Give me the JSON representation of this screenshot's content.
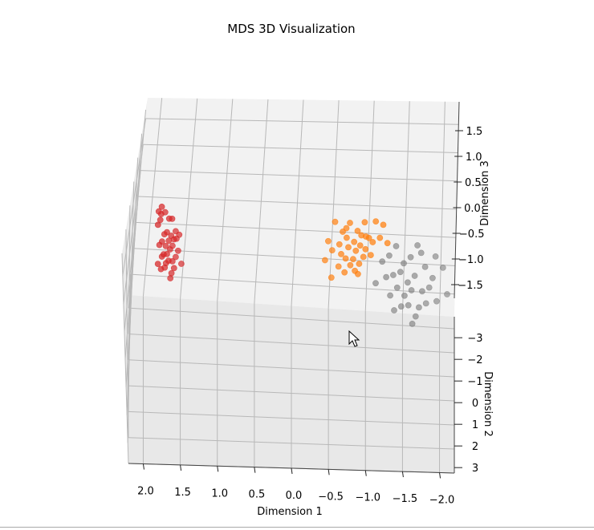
{
  "chart_data": {
    "type": "scatter",
    "subtype": "3d",
    "title": "MDS 3D Visualization",
    "xlabel": "Dimension 1",
    "ylabel": "Dimension 2",
    "zlabel": "Dimension 3",
    "xlim": [
      2.2,
      -2.2
    ],
    "ylim": [
      -3.5,
      3.0
    ],
    "zlim": [
      -1.9,
      1.9
    ],
    "xticks": [
      2.0,
      1.5,
      1.0,
      0.5,
      0.0,
      -0.5,
      -1.0,
      -1.5,
      -2.0
    ],
    "xtick_labels": [
      "2.0",
      "1.5",
      "1.0",
      "0.5",
      "0.0",
      "−0.5",
      "−1.0",
      "−1.5",
      "−2.0"
    ],
    "yticks": [
      -3,
      -2,
      -1,
      0,
      1,
      2,
      3
    ],
    "ytick_labels": [
      "−3",
      "−2",
      "−1",
      "0",
      "1",
      "2",
      "3"
    ],
    "zticks": [
      1.5,
      1.0,
      0.5,
      0.0,
      -0.5,
      -1.0,
      -1.5
    ],
    "ztick_labels": [
      "1.5",
      "1.0",
      "0.5",
      "0.0",
      "−0.5",
      "−1.0",
      "−1.5"
    ],
    "grid": true,
    "series": [
      {
        "color": "#d62728",
        "points": [
          [
            1.85,
            -0.4,
            0.62
          ],
          [
            1.8,
            -0.3,
            0.55
          ],
          [
            1.9,
            -0.5,
            0.3
          ],
          [
            1.7,
            -0.2,
            0.45
          ],
          [
            1.75,
            -0.35,
            0.25
          ],
          [
            1.65,
            -0.1,
            0.15
          ],
          [
            1.88,
            -0.45,
            0.05
          ],
          [
            1.6,
            -0.05,
            0.1
          ],
          [
            1.78,
            -0.25,
            -0.1
          ],
          [
            1.72,
            -0.2,
            -0.15
          ],
          [
            1.82,
            -0.3,
            -0.25
          ],
          [
            1.68,
            -0.15,
            -0.2
          ],
          [
            1.92,
            -0.55,
            -0.3
          ],
          [
            1.7,
            -0.1,
            -0.35
          ],
          [
            1.76,
            -0.28,
            -0.45
          ],
          [
            1.62,
            -0.02,
            -0.4
          ],
          [
            1.8,
            -0.22,
            -0.55
          ],
          [
            1.74,
            -0.18,
            -0.6
          ],
          [
            1.86,
            -0.38,
            -0.65
          ],
          [
            1.66,
            -0.08,
            -0.7
          ],
          [
            1.9,
            -0.42,
            -0.85
          ],
          [
            1.79,
            -0.26,
            -0.9
          ],
          [
            1.71,
            -0.14,
            -0.95
          ],
          [
            1.84,
            -0.34,
            -1.05
          ],
          [
            1.77,
            -0.24,
            -1.1
          ],
          [
            1.69,
            -0.12,
            -1.15
          ],
          [
            1.87,
            -0.4,
            -1.25
          ],
          [
            1.81,
            -0.3,
            -1.3
          ],
          [
            1.73,
            -0.16,
            -1.4
          ],
          [
            1.83,
            -0.32,
            -1.5
          ],
          [
            1.75,
            -0.2,
            -1.65
          ],
          [
            1.89,
            -0.44,
            -1.8
          ],
          [
            1.64,
            -0.06,
            -0.05
          ],
          [
            1.86,
            -0.36,
            0.4
          ],
          [
            1.58,
            0.0,
            -0.8
          ],
          [
            1.94,
            -0.6,
            -1.95
          ]
        ]
      },
      {
        "color": "#ff7f0e",
        "points": [
          [
            -0.75,
            -0.2,
            0.45
          ],
          [
            -0.55,
            -0.1,
            0.6
          ],
          [
            -0.95,
            -0.3,
            0.35
          ],
          [
            -0.65,
            -0.15,
            0.2
          ],
          [
            -0.85,
            -0.25,
            0.1
          ],
          [
            -1.1,
            -0.4,
            0.25
          ],
          [
            -0.45,
            -0.05,
            0.0
          ],
          [
            -0.7,
            -0.18,
            -0.05
          ],
          [
            -0.9,
            -0.28,
            -0.1
          ],
          [
            -1.2,
            -0.45,
            0.05
          ],
          [
            -0.6,
            -0.12,
            -0.2
          ],
          [
            -0.8,
            -0.22,
            -0.25
          ],
          [
            -1.0,
            -0.35,
            -0.3
          ],
          [
            -0.5,
            -0.08,
            -0.35
          ],
          [
            -0.72,
            -0.19,
            -0.4
          ],
          [
            -0.88,
            -0.27,
            -0.45
          ],
          [
            -1.05,
            -0.38,
            -0.5
          ],
          [
            -0.62,
            -0.13,
            -0.55
          ],
          [
            -0.82,
            -0.24,
            -0.6
          ],
          [
            -0.95,
            -0.31,
            -0.65
          ],
          [
            -0.4,
            -0.02,
            -0.6
          ],
          [
            -0.68,
            -0.16,
            -0.75
          ],
          [
            -0.78,
            -0.21,
            -0.85
          ],
          [
            -0.92,
            -0.29,
            -0.9
          ],
          [
            -0.58,
            -0.11,
            -0.95
          ],
          [
            -0.74,
            -0.2,
            -1.05
          ],
          [
            -0.86,
            -0.26,
            -1.1
          ],
          [
            -1.02,
            -0.36,
            -0.95
          ],
          [
            -0.66,
            -0.14,
            -1.2
          ],
          [
            -0.8,
            -0.23,
            -1.3
          ],
          [
            -0.48,
            -0.06,
            -1.25
          ],
          [
            -0.96,
            -0.32,
            -0.2
          ],
          [
            -1.15,
            -0.42,
            -0.4
          ],
          [
            -0.7,
            -0.17,
            0.3
          ],
          [
            -0.84,
            -0.25,
            -1.45
          ],
          [
            -1.25,
            -0.48,
            -0.7
          ]
        ]
      },
      {
        "color": "#7f7f7f",
        "points": [
          [
            -1.7,
            0.6,
            0.7
          ],
          [
            -1.95,
            0.8,
            0.6
          ],
          [
            -1.4,
            0.4,
            0.45
          ],
          [
            -1.6,
            0.55,
            0.3
          ],
          [
            -2.05,
            0.9,
            0.4
          ],
          [
            -1.8,
            0.7,
            0.2
          ],
          [
            -1.3,
            0.35,
            0.1
          ],
          [
            -1.5,
            0.45,
            0.0
          ],
          [
            -1.9,
            0.75,
            -0.05
          ],
          [
            -1.2,
            0.3,
            -0.15
          ],
          [
            -1.65,
            0.58,
            -0.2
          ],
          [
            -1.45,
            0.42,
            -0.3
          ],
          [
            -1.85,
            0.72,
            -0.35
          ],
          [
            -1.35,
            0.38,
            -0.45
          ],
          [
            -1.55,
            0.5,
            -0.5
          ],
          [
            -1.75,
            0.65,
            -0.55
          ],
          [
            -1.25,
            0.32,
            -0.6
          ],
          [
            -1.6,
            0.52,
            -0.7
          ],
          [
            -1.4,
            0.4,
            -0.8
          ],
          [
            -1.8,
            0.68,
            -0.85
          ],
          [
            -1.5,
            0.46,
            -0.95
          ],
          [
            -1.7,
            0.62,
            -1.05
          ],
          [
            -1.3,
            0.36,
            -1.1
          ],
          [
            -1.55,
            0.48,
            -1.2
          ],
          [
            -1.45,
            0.44,
            -1.3
          ],
          [
            -1.65,
            0.56,
            -1.4
          ],
          [
            -1.35,
            0.39,
            -1.5
          ],
          [
            -1.6,
            0.54,
            -1.65
          ],
          [
            -2.1,
            0.95,
            -0.25
          ],
          [
            -1.95,
            0.82,
            -0.6
          ],
          [
            -1.1,
            0.25,
            -0.9
          ],
          [
            -1.75,
            0.66,
            0.55
          ]
        ]
      }
    ]
  }
}
